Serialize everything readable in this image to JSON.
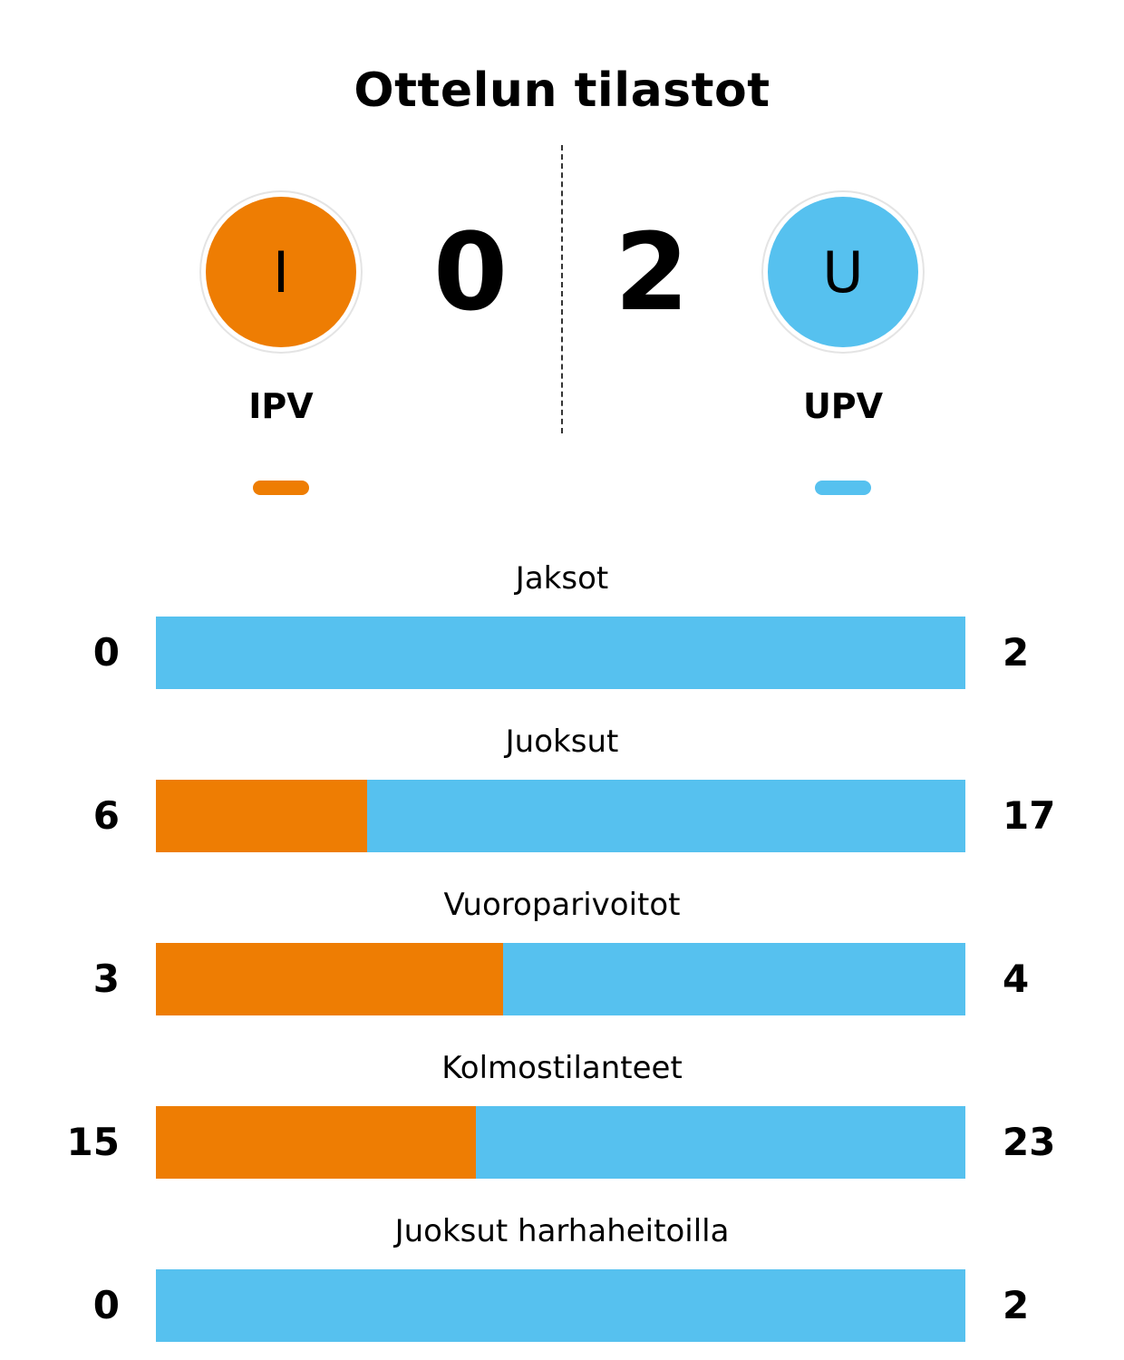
{
  "title": "Ottelun tilastot",
  "colors": {
    "home": "#ee7d03",
    "away": "#56c1ef"
  },
  "home": {
    "initial": "I",
    "name": "IPV",
    "score": "0"
  },
  "away": {
    "initial": "U",
    "name": "UPV",
    "score": "2"
  },
  "chart_data": {
    "type": "bar",
    "orientation": "horizontal-stacked-100",
    "categories": [
      "Jaksot",
      "Juoksut",
      "Vuoroparivoitot",
      "Kolmostilanteet",
      "Juoksut harhaheitoilla"
    ],
    "series": [
      {
        "name": "IPV",
        "values": [
          0,
          6,
          3,
          15,
          0
        ]
      },
      {
        "name": "UPV",
        "values": [
          2,
          17,
          4,
          23,
          2
        ]
      }
    ]
  }
}
